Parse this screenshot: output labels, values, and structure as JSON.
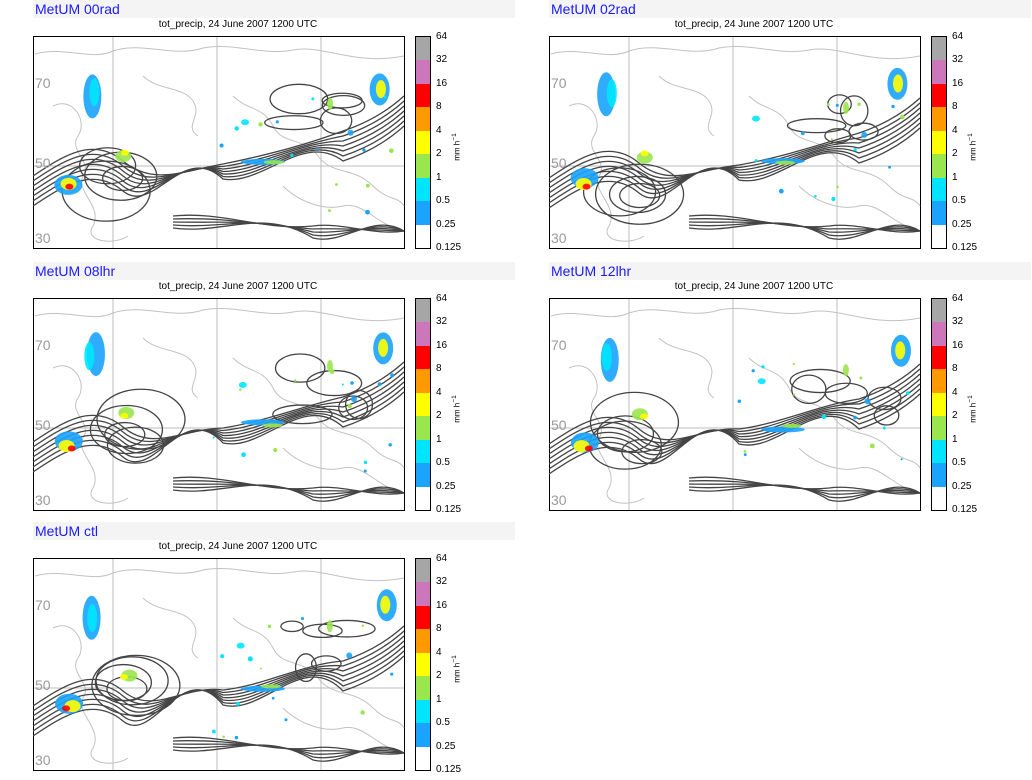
{
  "panels": [
    {
      "id": "00rad",
      "model_label": "MetUM 00rad",
      "subtitle": "tot_precip, 24 June 2007 1200 UTC"
    },
    {
      "id": "02rad",
      "model_label": "MetUM 02rad",
      "subtitle": "tot_precip, 24 June 2007 1200 UTC"
    },
    {
      "id": "08lhr",
      "model_label": "MetUM 08lhr",
      "subtitle": "tot_precip, 24 June 2007 1200 UTC"
    },
    {
      "id": "12lhr",
      "model_label": "MetUM 12lhr",
      "subtitle": "tot_precip, 24 June 2007 1200 UTC"
    },
    {
      "id": "ctl",
      "model_label": "MetUM ctl",
      "subtitle": "tot_precip, 24 June 2007 1200 UTC"
    }
  ],
  "chart_data": {
    "type": "heatmap",
    "title": "tot_precip, 24 June 2007 1200 UTC",
    "lat_labels": [
      "70",
      "50",
      "30"
    ],
    "colorbar": {
      "units": "mm h",
      "units_exp": "−1",
      "levels": [
        "0.125",
        "0.25",
        "0.5",
        "1",
        "2",
        "4",
        "8",
        "16",
        "32",
        "64"
      ],
      "colors": [
        "#ffffff",
        "#1aa3ff",
        "#00e5ff",
        "#99e64d",
        "#ffff00",
        "#ff9900",
        "#ff0000",
        "#cc77bb",
        "#a6a6a6"
      ]
    }
  }
}
